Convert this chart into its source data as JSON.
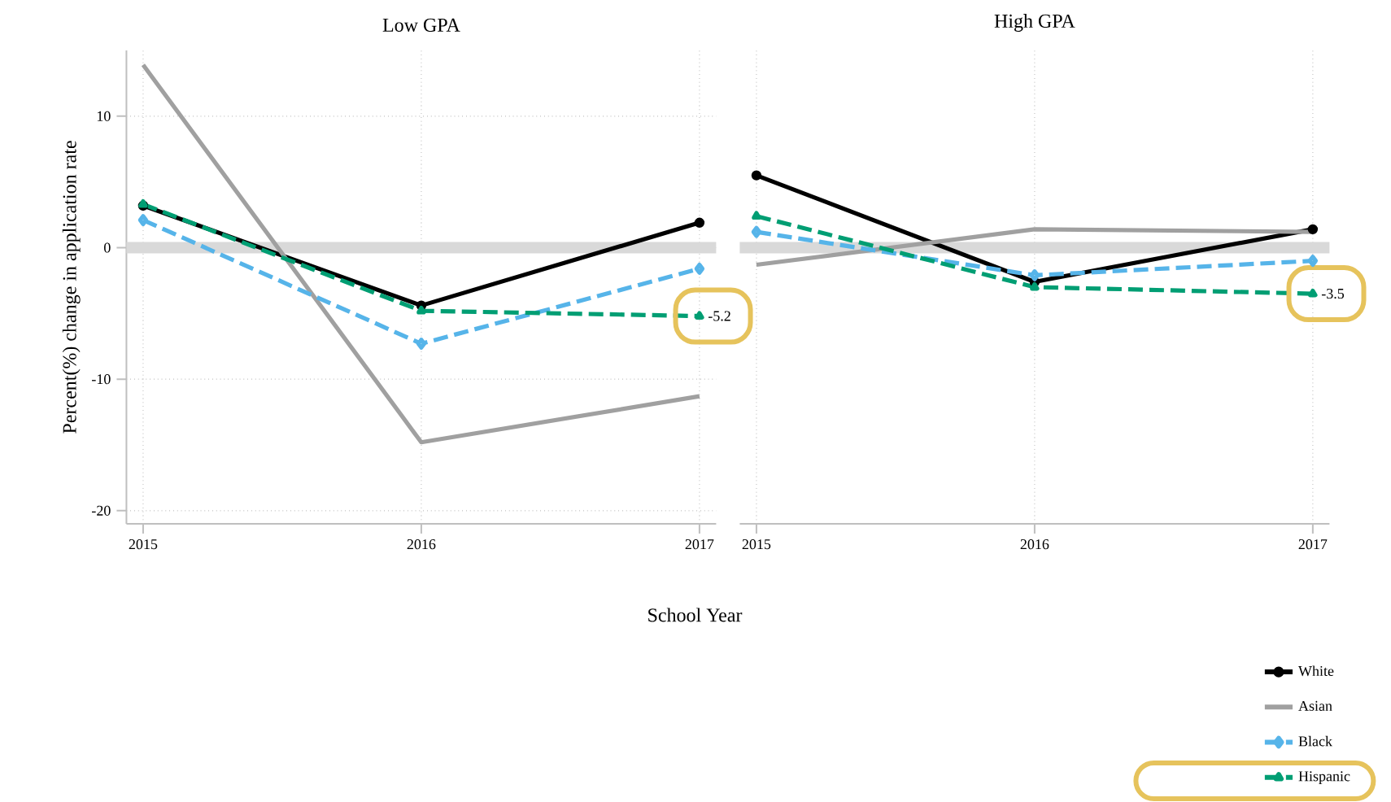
{
  "chart_data": [
    {
      "type": "line",
      "title": "Low GPA",
      "ylabel": "Percent(%) change in application rate",
      "xlabel": "School Year",
      "categories": [
        "2015",
        "2016",
        "2017"
      ],
      "ylim": [
        -21,
        15
      ],
      "yticks": [
        -20,
        -10,
        0,
        10
      ],
      "grid": true,
      "ref_lines": [
        {
          "axis": "y",
          "value": 0,
          "color": "#d9d9d9"
        }
      ],
      "series": [
        {
          "color": "#000000",
          "values": [
            3.2,
            -4.4,
            1.9
          ],
          "marker": "circle",
          "line_style": "solid"
        },
        {
          "color": "#a0a0a0",
          "values": [
            13.9,
            -14.8,
            -11.3
          ],
          "marker": "none",
          "line_style": "solid"
        },
        {
          "color": "#56b4e9",
          "values": [
            2.1,
            -7.3,
            -1.6
          ],
          "marker": "diamond",
          "line_style": "dashed"
        },
        {
          "color": "#009e73",
          "values": [
            3.3,
            -4.8,
            -5.2
          ],
          "marker": "triangle",
          "line_style": "dashed",
          "value_labels": [
            null,
            null,
            "-5.2"
          ]
        }
      ]
    },
    {
      "type": "line",
      "title": "High GPA",
      "categories": [
        "2015",
        "2016",
        "2017"
      ],
      "ylim": [
        -21,
        15
      ],
      "yticks": [
        -20,
        -10,
        0,
        10
      ],
      "grid": true,
      "tick_labels": "x",
      "legend": "bottom right",
      "ref_lines": [
        {
          "axis": "y",
          "value": 0,
          "color": "#d9d9d9"
        }
      ],
      "series": [
        {
          "name": "White",
          "color": "#000000",
          "values": [
            5.5,
            -2.6,
            1.4
          ],
          "marker": "circle",
          "line_style": "solid"
        },
        {
          "name": "Asian",
          "color": "#a0a0a0",
          "values": [
            -1.3,
            1.4,
            1.2
          ],
          "marker": "none",
          "line_style": "solid"
        },
        {
          "name": "Black",
          "color": "#56b4e9",
          "values": [
            1.2,
            -2.1,
            -1.0
          ],
          "marker": "diamond",
          "line_style": "dashed"
        },
        {
          "name": "Hispanic",
          "color": "#009e73",
          "values": [
            2.4,
            -3.0,
            -3.5
          ],
          "marker": "triangle",
          "line_style": "dashed",
          "value_labels": [
            null,
            null,
            "-3.5"
          ]
        }
      ]
    }
  ]
}
